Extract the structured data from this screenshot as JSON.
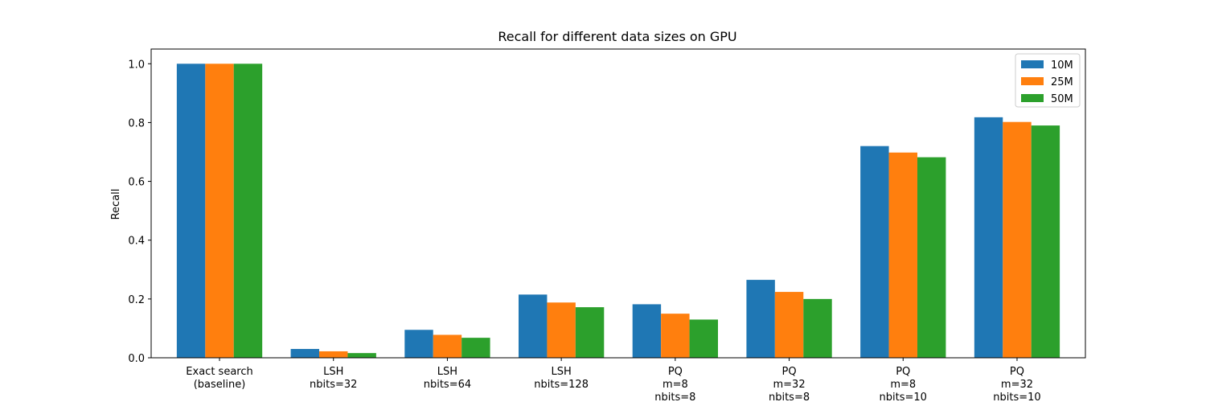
{
  "chart_data": {
    "type": "bar",
    "title": "Recall for different data sizes on GPU",
    "xlabel": "",
    "ylabel": "Recall",
    "ylim": [
      0,
      1.05
    ],
    "yticks": [
      "0.0",
      "0.2",
      "0.4",
      "0.6",
      "0.8",
      "1.0"
    ],
    "categories": [
      [
        "Exact search",
        "(baseline)"
      ],
      [
        "LSH",
        "nbits=32"
      ],
      [
        "LSH",
        "nbits=64"
      ],
      [
        "LSH",
        "nbits=128"
      ],
      [
        "PQ",
        "m=8",
        "nbits=8"
      ],
      [
        "PQ",
        "m=32",
        "nbits=8"
      ],
      [
        "PQ",
        "m=8",
        "nbits=10"
      ],
      [
        "PQ",
        "m=32",
        "nbits=10"
      ]
    ],
    "series": [
      {
        "name": "10M",
        "color": "#1f77b4",
        "values": [
          1.0,
          0.03,
          0.095,
          0.215,
          0.182,
          0.265,
          0.72,
          0.818
        ]
      },
      {
        "name": "25M",
        "color": "#ff7f0e",
        "values": [
          1.0,
          0.022,
          0.078,
          0.188,
          0.15,
          0.224,
          0.698,
          0.802
        ]
      },
      {
        "name": "50M",
        "color": "#2ca02c",
        "values": [
          1.0,
          0.016,
          0.068,
          0.172,
          0.13,
          0.2,
          0.682,
          0.79
        ]
      }
    ],
    "grid": false,
    "legend_position": "top-right"
  }
}
